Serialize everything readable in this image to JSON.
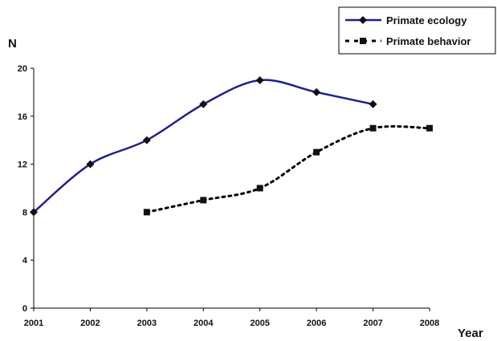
{
  "chart_data": {
    "type": "line",
    "title": "",
    "xlabel": "Year",
    "ylabel": "N",
    "x": [
      2001,
      2002,
      2003,
      2004,
      2005,
      2006,
      2007,
      2008
    ],
    "xlim": [
      2001,
      2008
    ],
    "ylim": [
      0,
      20
    ],
    "yticks": [
      0,
      4,
      8,
      12,
      16,
      20
    ],
    "grid": false,
    "legend_position": "top-right",
    "series": [
      {
        "name": "Primate ecology",
        "x": [
          2001,
          2002,
          2003,
          2004,
          2005,
          2006,
          2007
        ],
        "values": [
          8,
          12,
          14,
          17,
          19,
          18,
          17
        ],
        "color": "#1f1f8f",
        "line_style": "solid",
        "marker": "diamond"
      },
      {
        "name": "Primate behavior",
        "x": [
          2003,
          2004,
          2005,
          2006,
          2007,
          2008
        ],
        "values": [
          8,
          9,
          10,
          13,
          15,
          15
        ],
        "color": "#000000",
        "line_style": "dotted",
        "marker": "square"
      }
    ]
  }
}
